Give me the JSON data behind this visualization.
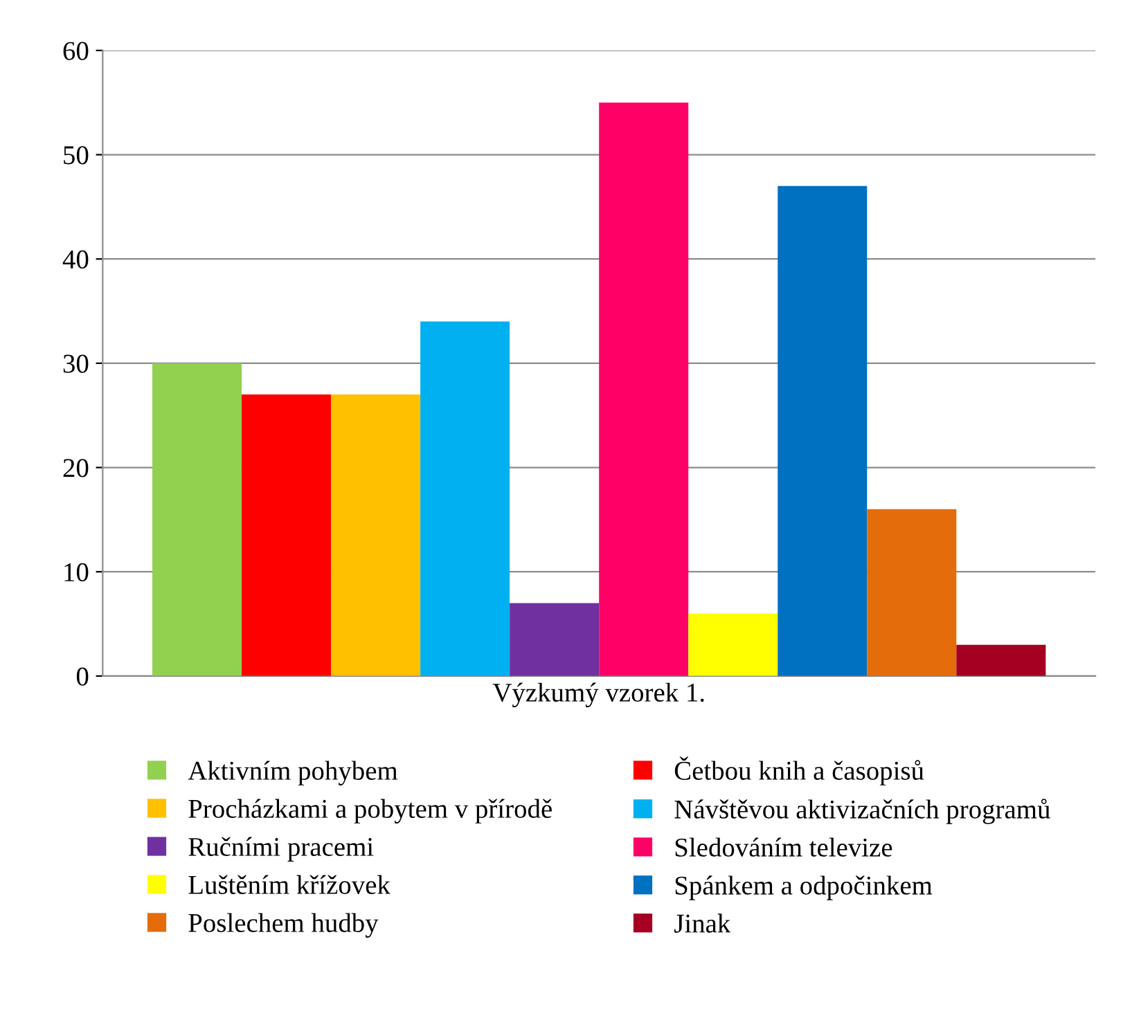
{
  "chart_data": {
    "type": "bar",
    "categories": [
      "Výzkumý vzorek 1."
    ],
    "ylim": [
      0,
      60
    ],
    "yticks": [
      0,
      10,
      20,
      30,
      40,
      50,
      60
    ],
    "grid": "y",
    "legend": "bottom",
    "series": [
      {
        "name": "Aktivním pohybem",
        "color": "#92d050",
        "values": [
          30
        ]
      },
      {
        "name": "Četbou knih a časopisů",
        "color": "#ff0000",
        "values": [
          27
        ]
      },
      {
        "name": "Procházkami a pobytem v přírodě",
        "color": "#ffc000",
        "values": [
          27
        ]
      },
      {
        "name": "Návštěvou aktivizačních programů",
        "color": "#00b0f0",
        "values": [
          34
        ]
      },
      {
        "name": "Ručními pracemi",
        "color": "#7030a0",
        "values": [
          7
        ]
      },
      {
        "name": "Sledováním televize",
        "color": "#ff0066",
        "values": [
          55
        ]
      },
      {
        "name": "Luštěním křížovek",
        "color": "#ffff00",
        "values": [
          6
        ]
      },
      {
        "name": "Spánkem a odpočinkem",
        "color": "#0070c0",
        "values": [
          47
        ]
      },
      {
        "name": "Poslechem hudby",
        "color": "#e46c0a",
        "values": [
          16
        ]
      },
      {
        "name": "Jinak",
        "color": "#a50021",
        "values": [
          3
        ]
      }
    ]
  }
}
